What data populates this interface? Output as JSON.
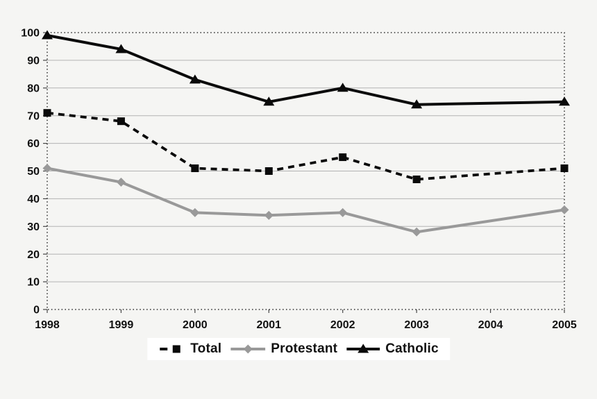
{
  "chart_data": {
    "type": "line",
    "title": "",
    "xlabel": "",
    "ylabel": "",
    "x": [
      1998,
      1999,
      2000,
      2001,
      2002,
      2003,
      2004,
      2005
    ],
    "x_tick_labels": [
      "1998",
      "1999",
      "2000",
      "2001",
      "2002",
      "2003",
      "2004",
      "2005"
    ],
    "ylim": [
      0,
      100
    ],
    "y_ticks": [
      0,
      10,
      20,
      30,
      40,
      50,
      60,
      70,
      80,
      90,
      100
    ],
    "grid": true,
    "legend_position": "bottom",
    "series": [
      {
        "name": "Total",
        "color": "#0a0a0a",
        "line_style": "dashed",
        "marker": "square",
        "points": [
          [
            1998,
            71
          ],
          [
            1999,
            68
          ],
          [
            2000,
            51
          ],
          [
            2001,
            50
          ],
          [
            2002,
            55
          ],
          [
            2003,
            47
          ],
          [
            2005,
            51
          ]
        ]
      },
      {
        "name": "Protestant",
        "color": "#999999",
        "line_style": "solid",
        "marker": "diamond",
        "points": [
          [
            1998,
            51
          ],
          [
            1999,
            46
          ],
          [
            2000,
            35
          ],
          [
            2001,
            34
          ],
          [
            2002,
            35
          ],
          [
            2003,
            28
          ],
          [
            2005,
            36
          ]
        ]
      },
      {
        "name": "Catholic",
        "color": "#0a0a0a",
        "line_style": "solid",
        "marker": "triangle",
        "points": [
          [
            1998,
            99
          ],
          [
            1999,
            94
          ],
          [
            2000,
            83
          ],
          [
            2001,
            75
          ],
          [
            2002,
            80
          ],
          [
            2003,
            74
          ],
          [
            2005,
            75
          ]
        ]
      }
    ]
  },
  "colors": {
    "background": "#f5f5f3",
    "grid": "#b3b3b3",
    "axis": "#2b2b2b",
    "tick": "#444444",
    "text": "#111111",
    "legend_bg": "#ffffff"
  }
}
